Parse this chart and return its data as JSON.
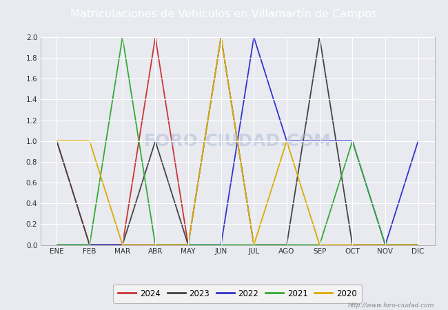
{
  "title": "Matriculaciones de Vehiculos en Villamartín de Campos",
  "title_bg_color": "#5b8dd9",
  "title_text_color": "white",
  "plot_bg_color": "#e8eaf0",
  "grid_color": "white",
  "fig_bg_color": "#e8eaf0",
  "months": [
    "ENE",
    "FEB",
    "MAR",
    "ABR",
    "MAY",
    "JUN",
    "JUL",
    "AGO",
    "SEP",
    "OCT",
    "NOV",
    "DIC"
  ],
  "series": [
    {
      "label": "2024",
      "color": "#cc3333",
      "data": [
        1,
        0,
        0,
        2,
        0,
        null,
        null,
        null,
        null,
        null,
        null,
        null
      ]
    },
    {
      "label": "2023",
      "color": "#444444",
      "data": [
        1,
        0,
        0,
        1,
        0,
        2,
        0,
        0,
        2,
        0,
        0,
        0
      ]
    },
    {
      "label": "2022",
      "color": "#3333cc",
      "data": [
        0,
        0,
        0,
        0,
        0,
        0,
        2,
        1,
        1,
        1,
        0,
        1
      ]
    },
    {
      "label": "2021",
      "color": "#33aa33",
      "data": [
        0,
        0,
        2,
        0,
        0,
        0,
        0,
        0,
        0,
        1,
        0,
        0
      ]
    },
    {
      "label": "2020",
      "color": "#ddaa00",
      "data": [
        1,
        1,
        0,
        0,
        0,
        2,
        0,
        1,
        0,
        0,
        0,
        0
      ]
    }
  ],
  "ylim": [
    0,
    2.0
  ],
  "yticks": [
    0.0,
    0.2,
    0.4,
    0.6,
    0.8,
    1.0,
    1.2,
    1.4,
    1.6,
    1.8,
    2.0
  ],
  "footer_url": "http://www.foro-ciudad.com",
  "legend_bg": "#f5f5f5",
  "legend_border": "#aaaaaa",
  "watermark": "FORO-CIUDAD.COM"
}
